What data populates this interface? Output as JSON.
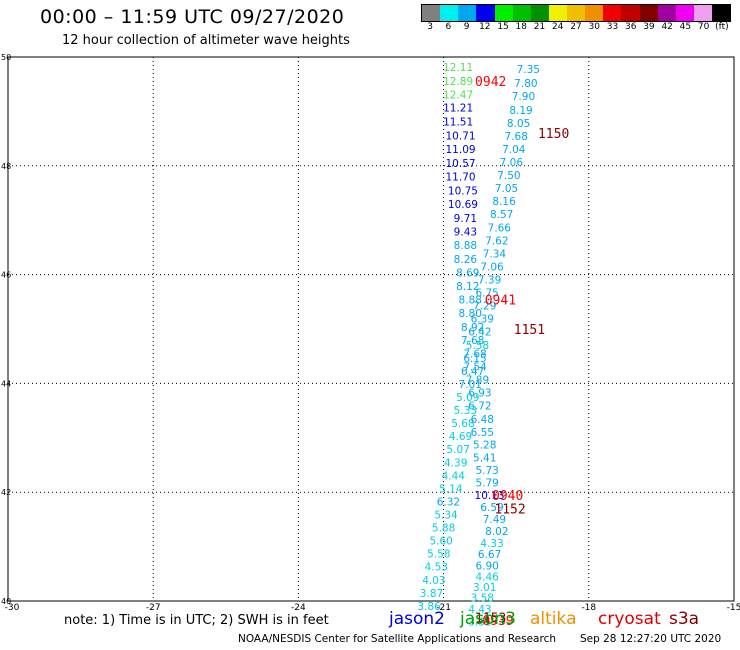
{
  "header": {
    "title": "00:00 – 11:59 UTC 09/27/2020",
    "subtitle": "12 hour collection of altimeter wave heights"
  },
  "legend": {
    "labels": [
      "3",
      "6",
      "9",
      "12",
      "15",
      "18",
      "21",
      "24",
      "27",
      "30",
      "33",
      "36",
      "39",
      "42",
      "45",
      "70",
      "(ft)"
    ],
    "colors": [
      "#808080",
      "#00f0f0",
      "#00a8f0",
      "#0000f0",
      "#00f000",
      "#00c000",
      "#009000",
      "#f0f000",
      "#f0c000",
      "#f09000",
      "#f00000",
      "#c00000",
      "#800000",
      "#a000a0",
      "#f000f0",
      "#f0a0f0",
      "#000000"
    ]
  },
  "chart_data": {
    "type": "scatter",
    "xlim": [
      -30,
      -15
    ],
    "ylim": [
      40,
      50
    ],
    "x_ticks": [
      "-30",
      "-27",
      "-24",
      "-21",
      "-18",
      "-15"
    ],
    "y_ticks": [
      "40",
      "42",
      "44",
      "46",
      "48",
      "50"
    ],
    "grid": true,
    "points": [
      {
        "x": -20.7,
        "y": 49.82,
        "v": "12.11",
        "c": "#50e050"
      },
      {
        "x": -20.7,
        "y": 49.56,
        "v": "12.89",
        "c": "#50e050"
      },
      {
        "x": -20.7,
        "y": 49.31,
        "v": "12.47",
        "c": "#50e050"
      },
      {
        "x": -20.7,
        "y": 49.07,
        "v": "11.21",
        "c": "#0000e0"
      },
      {
        "x": -20.7,
        "y": 48.81,
        "v": "11.51",
        "c": "#0000e0"
      },
      {
        "x": -20.65,
        "y": 48.56,
        "v": "10.71",
        "c": "#0000e0"
      },
      {
        "x": -20.65,
        "y": 48.31,
        "v": "11.09",
        "c": "#0000e0"
      },
      {
        "x": -20.65,
        "y": 48.05,
        "v": "10.57",
        "c": "#0000e0"
      },
      {
        "x": -20.65,
        "y": 47.8,
        "v": "11.70",
        "c": "#0000e0"
      },
      {
        "x": -20.6,
        "y": 47.55,
        "v": "10.75",
        "c": "#0000e0"
      },
      {
        "x": -20.6,
        "y": 47.3,
        "v": "10.69",
        "c": "#0000e0"
      },
      {
        "x": -20.55,
        "y": 47.04,
        "v": "9.71",
        "c": "#0000e0"
      },
      {
        "x": -20.55,
        "y": 46.79,
        "v": "9.43",
        "c": "#0000e0"
      },
      {
        "x": -20.55,
        "y": 46.54,
        "v": "8.88",
        "c": "#00a8f0"
      },
      {
        "x": -20.55,
        "y": 46.29,
        "v": "8.26",
        "c": "#00a8f0"
      },
      {
        "x": -20.5,
        "y": 46.04,
        "v": "8.69",
        "c": "#00a8f0"
      },
      {
        "x": -20.5,
        "y": 45.79,
        "v": "8.12",
        "c": "#00a8f0"
      },
      {
        "x": -20.45,
        "y": 45.54,
        "v": "8.88",
        "c": "#00a8f0"
      },
      {
        "x": -20.45,
        "y": 45.29,
        "v": "8.80",
        "c": "#00a8f0"
      },
      {
        "x": -20.4,
        "y": 45.04,
        "v": "8.92",
        "c": "#00a8f0"
      },
      {
        "x": -20.4,
        "y": 44.8,
        "v": "7.68",
        "c": "#00a8f0"
      },
      {
        "x": -20.35,
        "y": 44.55,
        "v": "7.68",
        "c": "#00a8f0"
      },
      {
        "x": -20.35,
        "y": 44.31,
        "v": "7.54",
        "c": "#00a8f0"
      },
      {
        "x": -20.3,
        "y": 44.07,
        "v": "7.89",
        "c": "#00a8f0"
      },
      {
        "x": -20.25,
        "y": 43.83,
        "v": "6.93",
        "c": "#00a8f0"
      },
      {
        "x": -20.25,
        "y": 43.59,
        "v": "6.72",
        "c": "#00a8f0"
      },
      {
        "x": -20.2,
        "y": 43.35,
        "v": "6.48",
        "c": "#00a8f0"
      },
      {
        "x": -20.2,
        "y": 43.11,
        "v": "6.55",
        "c": "#00a8f0"
      },
      {
        "x": -20.15,
        "y": 42.88,
        "v": "5.28",
        "c": "#00a8f0"
      },
      {
        "x": -20.15,
        "y": 42.64,
        "v": "5.41",
        "c": "#00a8f0"
      },
      {
        "x": -20.1,
        "y": 42.41,
        "v": "5.73",
        "c": "#00a8f0"
      },
      {
        "x": -20.1,
        "y": 42.18,
        "v": "5.79",
        "c": "#00a8f0"
      },
      {
        "x": -20.05,
        "y": 41.95,
        "v": "10.13",
        "c": "#0000e0"
      },
      {
        "x": -20.0,
        "y": 41.73,
        "v": "6.59",
        "c": "#00a8f0"
      },
      {
        "x": -19.95,
        "y": 41.51,
        "v": "7.49",
        "c": "#00a8f0"
      },
      {
        "x": -19.9,
        "y": 41.29,
        "v": "8.02",
        "c": "#00a8f0"
      },
      {
        "x": -20.0,
        "y": 41.07,
        "v": "4.33",
        "c": "#00d0e0"
      },
      {
        "x": -20.05,
        "y": 40.86,
        "v": "6.67",
        "c": "#00a8f0"
      },
      {
        "x": -20.1,
        "y": 40.65,
        "v": "6.90",
        "c": "#00a8f0"
      },
      {
        "x": -20.1,
        "y": 40.45,
        "v": "4.46",
        "c": "#00d0e0"
      },
      {
        "x": -20.15,
        "y": 40.26,
        "v": "3.01",
        "c": "#00d0e0"
      },
      {
        "x": -20.2,
        "y": 40.06,
        "v": "3.58",
        "c": "#00d0e0"
      },
      {
        "x": -20.25,
        "y": 39.85,
        "v": "4.43",
        "c": "#00d0e0"
      },
      {
        "x": -20.25,
        "y": 39.62,
        "v": "3.31",
        "c": "#00d0e0"
      },
      {
        "x": -19.25,
        "y": 49.78,
        "v": "7.35",
        "c": "#00a8f0"
      },
      {
        "x": -19.3,
        "y": 49.52,
        "v": "7.80",
        "c": "#00a8f0"
      },
      {
        "x": -19.35,
        "y": 49.28,
        "v": "7.90",
        "c": "#00a8f0"
      },
      {
        "x": -19.4,
        "y": 49.03,
        "v": "8.19",
        "c": "#00a8f0"
      },
      {
        "x": -19.45,
        "y": 48.79,
        "v": "8.05",
        "c": "#00a8f0"
      },
      {
        "x": -19.5,
        "y": 48.55,
        "v": "7.68",
        "c": "#00a8f0"
      },
      {
        "x": -19.55,
        "y": 48.31,
        "v": "7.04",
        "c": "#00a8f0"
      },
      {
        "x": -19.6,
        "y": 48.07,
        "v": "7.06",
        "c": "#00a8f0"
      },
      {
        "x": -19.65,
        "y": 47.83,
        "v": "7.50",
        "c": "#00a8f0"
      },
      {
        "x": -19.7,
        "y": 47.59,
        "v": "7.05",
        "c": "#00a8f0"
      },
      {
        "x": -19.75,
        "y": 47.35,
        "v": "8.16",
        "c": "#00a8f0"
      },
      {
        "x": -19.8,
        "y": 47.11,
        "v": "8.57",
        "c": "#00a8f0"
      },
      {
        "x": -19.85,
        "y": 46.87,
        "v": "7.66",
        "c": "#00a8f0"
      },
      {
        "x": -19.9,
        "y": 46.63,
        "v": "7.62",
        "c": "#00a8f0"
      },
      {
        "x": -19.95,
        "y": 46.39,
        "v": "7.34",
        "c": "#00a8f0"
      },
      {
        "x": -20.0,
        "y": 46.15,
        "v": "7.06",
        "c": "#00a8f0"
      },
      {
        "x": -20.05,
        "y": 45.91,
        "v": "7.39",
        "c": "#00a8f0"
      },
      {
        "x": -20.1,
        "y": 45.67,
        "v": "6.75",
        "c": "#00a8f0"
      },
      {
        "x": -20.15,
        "y": 45.43,
        "v": "7.29",
        "c": "#00a8f0"
      },
      {
        "x": -20.2,
        "y": 45.19,
        "v": "6.39",
        "c": "#00a8f0"
      },
      {
        "x": -20.25,
        "y": 44.95,
        "v": "6.42",
        "c": "#00a8f0"
      },
      {
        "x": -20.3,
        "y": 44.71,
        "v": "5.58",
        "c": "#00d0e0"
      },
      {
        "x": -20.35,
        "y": 44.47,
        "v": "6.15",
        "c": "#00a8f0"
      },
      {
        "x": -20.4,
        "y": 44.23,
        "v": "6.47",
        "c": "#00a8f0"
      },
      {
        "x": -20.45,
        "y": 43.99,
        "v": "7.01",
        "c": "#00a8f0"
      },
      {
        "x": -20.5,
        "y": 43.75,
        "v": "5.09",
        "c": "#00d0e0"
      },
      {
        "x": -20.55,
        "y": 43.51,
        "v": "5.33",
        "c": "#00d0e0"
      },
      {
        "x": -20.6,
        "y": 43.27,
        "v": "5.68",
        "c": "#00d0e0"
      },
      {
        "x": -20.65,
        "y": 43.03,
        "v": "4.69",
        "c": "#00d0e0"
      },
      {
        "x": -20.7,
        "y": 42.79,
        "v": "5.07",
        "c": "#00d0e0"
      },
      {
        "x": -20.75,
        "y": 42.55,
        "v": "4.39",
        "c": "#00d0e0"
      },
      {
        "x": -20.8,
        "y": 42.31,
        "v": "4.44",
        "c": "#00d0e0"
      },
      {
        "x": -20.85,
        "y": 42.07,
        "v": "5.14",
        "c": "#00d0e0"
      },
      {
        "x": -20.9,
        "y": 41.83,
        "v": "6.32",
        "c": "#00a8f0"
      },
      {
        "x": -20.95,
        "y": 41.59,
        "v": "5.34",
        "c": "#00d0e0"
      },
      {
        "x": -21.0,
        "y": 41.35,
        "v": "5.88",
        "c": "#00d0e0"
      },
      {
        "x": -21.05,
        "y": 41.11,
        "v": "5.60",
        "c": "#00d0e0"
      },
      {
        "x": -21.1,
        "y": 40.87,
        "v": "5.58",
        "c": "#00d0e0"
      },
      {
        "x": -21.15,
        "y": 40.63,
        "v": "4.53",
        "c": "#00d0e0"
      },
      {
        "x": -21.2,
        "y": 40.39,
        "v": "4.03",
        "c": "#00d0e0"
      },
      {
        "x": -21.25,
        "y": 40.15,
        "v": "3.87",
        "c": "#00d0e0"
      },
      {
        "x": -21.3,
        "y": 39.91,
        "v": "3.86",
        "c": "#00d0e0"
      }
    ],
    "pass_labels": [
      {
        "x": -20.35,
        "y": 49.56,
        "t": "0942",
        "c": "#ff0000"
      },
      {
        "x": -20.15,
        "y": 45.54,
        "t": "0941",
        "c": "#ff0000"
      },
      {
        "x": -20.0,
        "y": 41.95,
        "t": "0940",
        "c": "#ff0000"
      },
      {
        "x": -20.2,
        "y": 39.65,
        "t": "0939",
        "c": "#ff0000"
      },
      {
        "x": -19.05,
        "y": 48.6,
        "t": "1150",
        "c": "#8b0000"
      },
      {
        "x": -19.55,
        "y": 45.0,
        "t": "1151",
        "c": "#8b0000"
      },
      {
        "x": -19.95,
        "y": 41.7,
        "t": "1152",
        "c": "#8b0000"
      },
      {
        "x": -20.35,
        "y": 39.7,
        "t": "1153",
        "c": "#8b0000"
      }
    ]
  },
  "footer": {
    "note": "note: 1) Time is in UTC; 2) SWH is in feet",
    "satellites": [
      {
        "name": "jason2",
        "color": "#0000e0"
      },
      {
        "name": "jason3",
        "color": "#00a000"
      },
      {
        "name": "altika",
        "color": "#f09000"
      },
      {
        "name": "cryosat",
        "color": "#e00000"
      },
      {
        "name": "s3a",
        "color": "#800000"
      }
    ],
    "credit": "NOAA/NESDIS Center for Satellite Applications and Research",
    "timestamp": "Sep 28 12:27:20 UTC 2020"
  }
}
